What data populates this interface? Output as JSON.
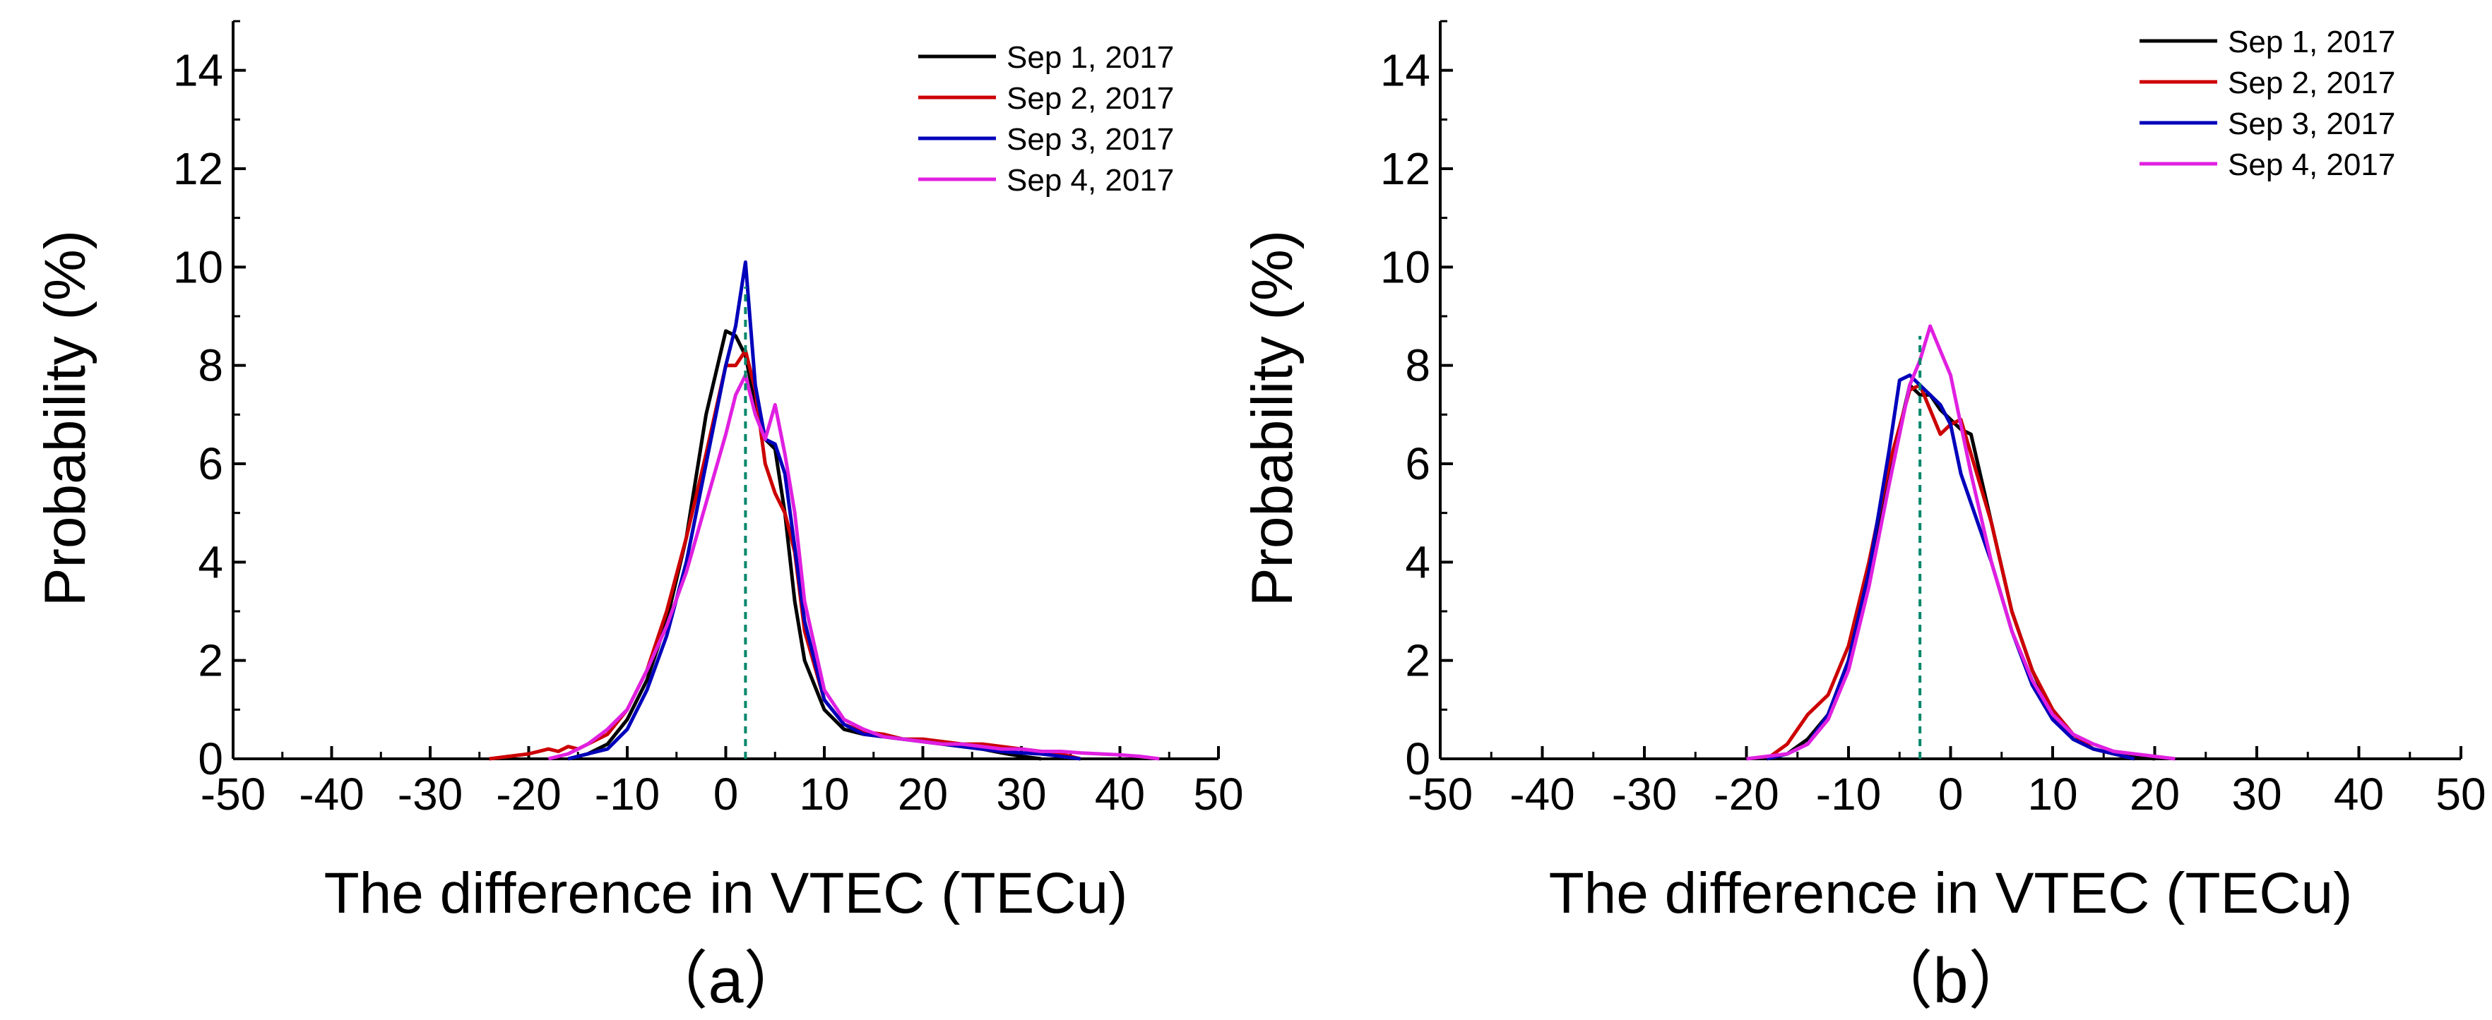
{
  "chart_data": [
    {
      "type": "line",
      "panel_label": "（a）",
      "xlabel": "The difference in VTEC (TECu)",
      "ylabel": "Probability (%)",
      "xlim": [
        -50,
        50
      ],
      "ylim": [
        0,
        15
      ],
      "xticks": [
        -50,
        -40,
        -30,
        -20,
        -10,
        0,
        10,
        20,
        30,
        40,
        50
      ],
      "yticks": [
        0,
        2,
        4,
        6,
        8,
        10,
        12,
        14
      ],
      "grid": false,
      "legend_position": "top-right",
      "reference_line": {
        "x": 2,
        "y_top": 9.6,
        "color": "#00876a",
        "style": "dashed"
      },
      "series": [
        {
          "name": "Sep 1, 2017",
          "color": "#000000",
          "x": [
            -16,
            -14,
            -12,
            -10,
            -8,
            -6,
            -4,
            -2,
            0,
            1,
            2,
            3,
            4,
            5,
            6,
            7,
            8,
            10,
            12,
            14,
            16,
            18,
            20,
            22,
            24,
            26,
            28,
            30,
            32
          ],
          "y": [
            0,
            0.1,
            0.3,
            0.8,
            1.6,
            2.8,
            4.5,
            7.0,
            8.7,
            8.6,
            8.2,
            7.2,
            6.5,
            6.3,
            5.0,
            3.2,
            2.0,
            1.0,
            0.6,
            0.5,
            0.45,
            0.4,
            0.35,
            0.3,
            0.25,
            0.2,
            0.12,
            0.05,
            0
          ]
        },
        {
          "name": "Sep 2, 2017",
          "color": "#cc0000",
          "x": [
            -24,
            -22,
            -20,
            -18,
            -17,
            -16,
            -15,
            -14,
            -13,
            -12,
            -10,
            -8,
            -6,
            -4,
            -2,
            0,
            1,
            2,
            3,
            4,
            5,
            6,
            7,
            8,
            10,
            12,
            14,
            16,
            18,
            20,
            22,
            24,
            26,
            28,
            30,
            32,
            34,
            36
          ],
          "y": [
            0,
            0.05,
            0.1,
            0.2,
            0.15,
            0.25,
            0.2,
            0.3,
            0.4,
            0.5,
            1.0,
            1.8,
            3.0,
            4.5,
            6.2,
            8.0,
            8.0,
            8.3,
            7.5,
            6.0,
            5.4,
            5.0,
            4.2,
            2.6,
            1.2,
            0.7,
            0.55,
            0.5,
            0.4,
            0.4,
            0.35,
            0.3,
            0.3,
            0.25,
            0.2,
            0.15,
            0.1,
            0
          ]
        },
        {
          "name": "Sep 3, 2017",
          "color": "#0000bb",
          "x": [
            -16,
            -14,
            -12,
            -10,
            -8,
            -6,
            -4,
            -2,
            0,
            1,
            2,
            3,
            4,
            5,
            6,
            7,
            8,
            10,
            12,
            14,
            16,
            18,
            20,
            22,
            24,
            26,
            28,
            30,
            32,
            34,
            36
          ],
          "y": [
            0,
            0.1,
            0.2,
            0.6,
            1.4,
            2.5,
            4.0,
            6.0,
            8.0,
            8.8,
            10.1,
            7.6,
            6.5,
            6.4,
            5.8,
            4.3,
            2.8,
            1.2,
            0.7,
            0.5,
            0.45,
            0.4,
            0.35,
            0.3,
            0.25,
            0.2,
            0.15,
            0.12,
            0.1,
            0.05,
            0
          ]
        },
        {
          "name": "Sep 4, 2017",
          "color": "#e020e0",
          "x": [
            -18,
            -16,
            -14,
            -12,
            -10,
            -8,
            -6,
            -4,
            -2,
            0,
            1,
            2,
            3,
            4,
            5,
            6,
            7,
            8,
            10,
            12,
            14,
            16,
            18,
            20,
            22,
            24,
            26,
            28,
            30,
            32,
            34,
            36,
            38,
            40,
            42,
            44
          ],
          "y": [
            0,
            0.1,
            0.3,
            0.6,
            1.0,
            1.8,
            2.7,
            3.8,
            5.2,
            6.6,
            7.4,
            7.8,
            7.0,
            6.5,
            7.2,
            6.2,
            5.0,
            3.2,
            1.4,
            0.8,
            0.6,
            0.45,
            0.4,
            0.35,
            0.3,
            0.3,
            0.25,
            0.2,
            0.2,
            0.15,
            0.15,
            0.12,
            0.1,
            0.08,
            0.05,
            0
          ]
        }
      ]
    },
    {
      "type": "line",
      "panel_label": "（b）",
      "xlabel": "The difference in VTEC (TECu)",
      "ylabel": "Probability (%)",
      "xlim": [
        -50,
        50
      ],
      "ylim": [
        0,
        15
      ],
      "xticks": [
        -50,
        -40,
        -30,
        -20,
        -10,
        0,
        10,
        20,
        30,
        40,
        50
      ],
      "yticks": [
        0,
        2,
        4,
        6,
        8,
        10,
        12,
        14
      ],
      "grid": false,
      "legend_position": "top-right",
      "reference_line": {
        "x": -3,
        "y_top": 8.6,
        "color": "#00876a",
        "style": "dashed"
      },
      "series": [
        {
          "name": "Sep 1, 2017",
          "color": "#000000",
          "x": [
            -18,
            -16,
            -14,
            -12,
            -10,
            -8,
            -6,
            -4,
            -3,
            -2,
            -1,
            0,
            1,
            2,
            4,
            6,
            8,
            10,
            12,
            14,
            16,
            18,
            20
          ],
          "y": [
            0,
            0.1,
            0.4,
            0.9,
            2.0,
            3.8,
            5.8,
            7.6,
            7.4,
            7.4,
            7.1,
            6.9,
            6.7,
            6.6,
            4.8,
            3.0,
            1.8,
            0.9,
            0.4,
            0.2,
            0.1,
            0.05,
            0
          ]
        },
        {
          "name": "Sep 2, 2017",
          "color": "#cc0000",
          "x": [
            -18,
            -16,
            -14,
            -12,
            -10,
            -8,
            -6,
            -4,
            -3,
            -2,
            -1,
            0,
            1,
            2,
            4,
            6,
            8,
            10,
            12,
            14,
            16,
            18
          ],
          "y": [
            0,
            0.3,
            0.9,
            1.3,
            2.3,
            4.0,
            6.0,
            7.5,
            7.6,
            7.1,
            6.6,
            6.8,
            6.9,
            6.2,
            4.8,
            3.0,
            1.8,
            1.0,
            0.5,
            0.2,
            0.1,
            0
          ]
        },
        {
          "name": "Sep 3, 2017",
          "color": "#0000bb",
          "x": [
            -18,
            -16,
            -14,
            -12,
            -10,
            -8,
            -6,
            -5,
            -4,
            -3,
            -2,
            -1,
            0,
            1,
            2,
            4,
            6,
            8,
            10,
            12,
            14,
            16,
            18
          ],
          "y": [
            0,
            0.1,
            0.3,
            0.9,
            2.0,
            3.8,
            6.3,
            7.7,
            7.8,
            7.6,
            7.4,
            7.2,
            6.8,
            5.8,
            5.2,
            4.0,
            2.6,
            1.5,
            0.8,
            0.4,
            0.2,
            0.1,
            0
          ]
        },
        {
          "name": "Sep 4, 2017",
          "color": "#e020e0",
          "x": [
            -20,
            -18,
            -16,
            -14,
            -12,
            -10,
            -8,
            -6,
            -4,
            -3,
            -2,
            -1,
            0,
            2,
            4,
            6,
            8,
            10,
            12,
            14,
            16,
            18,
            20,
            22
          ],
          "y": [
            0,
            0.05,
            0.1,
            0.3,
            0.8,
            1.8,
            3.5,
            5.6,
            7.6,
            8.1,
            8.8,
            8.3,
            7.8,
            5.8,
            4.0,
            2.6,
            1.6,
            0.9,
            0.5,
            0.3,
            0.15,
            0.1,
            0.05,
            0
          ]
        }
      ]
    }
  ]
}
